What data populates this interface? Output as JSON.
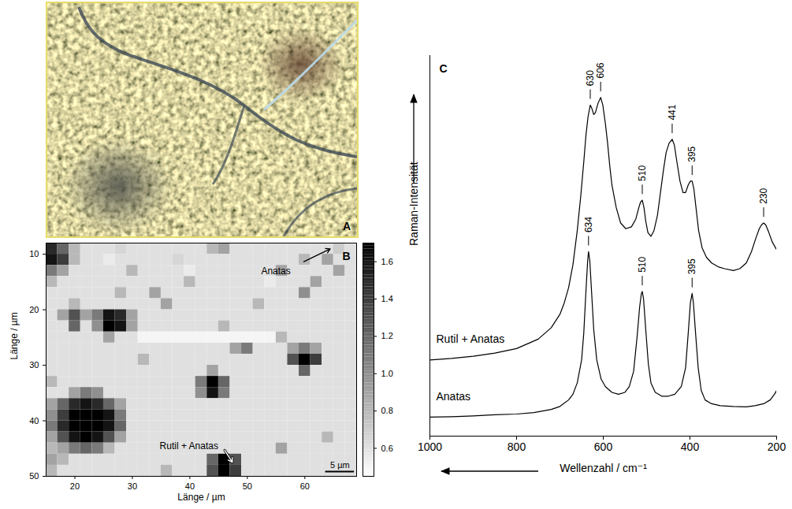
{
  "chart_data": [
    {
      "type": "image",
      "panel": "A"
    },
    {
      "type": "heatmap",
      "panel": "B",
      "x_label": "Länge / µm",
      "y_label": "Länge / µm",
      "xlim": [
        15,
        69
      ],
      "xticks": [
        20,
        30,
        40,
        50,
        60
      ],
      "ylim": [
        50,
        8
      ],
      "yticks": [
        10,
        20,
        30,
        40,
        50
      ],
      "x": [
        16,
        18,
        20,
        22,
        24,
        26,
        28,
        30,
        32,
        34,
        36,
        38,
        40,
        42,
        44,
        46,
        48,
        50,
        52,
        54,
        56,
        58,
        60,
        62,
        64,
        66,
        68
      ],
      "y": [
        9,
        11,
        13,
        15,
        17,
        19,
        21,
        23,
        25,
        27,
        29,
        31,
        33,
        35,
        37,
        39,
        41,
        43,
        45,
        47,
        49
      ],
      "values": [
        [
          1.5,
          1.2,
          0.8,
          0.6,
          0.6,
          0.6,
          0.65,
          0.6,
          0.6,
          0.6,
          0.6,
          0.6,
          0.6,
          0.6,
          0.8,
          0.9,
          0.6,
          0.6,
          0.6,
          0.6,
          0.6,
          0.6,
          0.6,
          0.6,
          0.6,
          0.7,
          0.6
        ],
        [
          1.6,
          1.4,
          0.8,
          0.6,
          0.6,
          0.55,
          0.6,
          0.6,
          0.6,
          0.6,
          0.6,
          0.65,
          0.6,
          0.6,
          0.6,
          0.6,
          0.6,
          0.6,
          0.6,
          0.6,
          0.6,
          0.6,
          0.8,
          0.6,
          0.9,
          0.6,
          0.6
        ],
        [
          1.1,
          0.9,
          0.6,
          0.6,
          0.6,
          0.6,
          0.6,
          0.8,
          0.6,
          0.6,
          0.6,
          0.6,
          0.55,
          0.6,
          0.6,
          0.6,
          0.6,
          0.6,
          0.6,
          0.6,
          0.9,
          0.6,
          0.6,
          0.6,
          0.6,
          0.9,
          0.6
        ],
        [
          0.8,
          0.6,
          0.6,
          0.6,
          0.6,
          0.6,
          0.6,
          0.6,
          0.6,
          0.6,
          0.6,
          0.6,
          0.8,
          0.6,
          0.6,
          0.6,
          0.6,
          0.6,
          0.6,
          0.55,
          0.6,
          0.6,
          0.6,
          0.9,
          0.6,
          0.6,
          0.6
        ],
        [
          0.6,
          0.6,
          0.6,
          0.6,
          0.6,
          0.6,
          0.8,
          0.6,
          0.6,
          0.9,
          0.6,
          0.6,
          0.6,
          0.6,
          0.6,
          0.6,
          0.6,
          0.6,
          0.6,
          0.6,
          0.6,
          0.6,
          1.0,
          0.6,
          0.6,
          0.6,
          0.6
        ],
        [
          0.6,
          0.6,
          0.8,
          0.6,
          0.6,
          0.6,
          0.6,
          0.6,
          0.6,
          0.6,
          0.9,
          0.6,
          0.6,
          0.6,
          0.6,
          0.6,
          0.6,
          0.6,
          0.8,
          0.6,
          0.6,
          0.6,
          0.6,
          0.6,
          0.6,
          0.6,
          0.6
        ],
        [
          0.6,
          0.9,
          1.3,
          0.9,
          1.1,
          1.6,
          1.5,
          0.9,
          0.6,
          0.6,
          0.6,
          0.6,
          0.6,
          0.6,
          0.6,
          0.6,
          0.6,
          0.6,
          0.6,
          0.6,
          0.6,
          0.6,
          0.6,
          0.6,
          0.6,
          0.6,
          0.6
        ],
        [
          0.6,
          0.6,
          1.2,
          0.6,
          1.0,
          1.7,
          1.6,
          0.9,
          0.6,
          0.6,
          0.6,
          0.6,
          0.6,
          0.6,
          0.6,
          0.8,
          0.6,
          0.6,
          0.6,
          0.6,
          0.6,
          0.6,
          0.6,
          0.6,
          0.6,
          0.6,
          0.6
        ],
        [
          0.6,
          0.6,
          0.6,
          0.6,
          0.6,
          0.9,
          0.6,
          0.6,
          0.5,
          0.5,
          0.5,
          0.5,
          0.5,
          0.5,
          0.5,
          0.5,
          0.5,
          0.5,
          0.5,
          0.5,
          0.8,
          0.6,
          0.6,
          0.6,
          0.6,
          0.6,
          0.6
        ],
        [
          0.6,
          0.6,
          0.6,
          0.6,
          0.6,
          0.6,
          0.6,
          0.6,
          0.6,
          0.6,
          0.6,
          0.6,
          0.6,
          0.6,
          0.6,
          0.6,
          0.9,
          1.1,
          0.6,
          0.6,
          0.6,
          0.9,
          1.1,
          0.9,
          0.6,
          0.6,
          0.6
        ],
        [
          0.6,
          0.6,
          0.6,
          0.6,
          0.6,
          0.6,
          0.6,
          0.6,
          0.8,
          0.6,
          0.6,
          0.6,
          0.6,
          0.6,
          0.6,
          0.6,
          0.6,
          0.6,
          0.6,
          0.6,
          0.6,
          1.3,
          1.7,
          1.4,
          0.6,
          0.6,
          0.6
        ],
        [
          0.6,
          0.6,
          0.6,
          0.6,
          0.6,
          0.6,
          0.6,
          0.6,
          0.6,
          0.6,
          0.6,
          0.6,
          0.6,
          0.6,
          0.9,
          0.6,
          0.6,
          0.6,
          0.6,
          0.6,
          0.6,
          0.6,
          1.2,
          0.6,
          0.6,
          0.6,
          0.6
        ],
        [
          0.8,
          0.6,
          0.6,
          0.6,
          0.6,
          0.6,
          0.6,
          0.6,
          0.6,
          0.6,
          0.6,
          0.6,
          0.6,
          1.1,
          1.7,
          1.2,
          0.6,
          0.6,
          0.6,
          0.6,
          0.6,
          0.6,
          0.6,
          0.6,
          0.6,
          0.6,
          0.6
        ],
        [
          0.6,
          0.6,
          0.9,
          1.1,
          1.0,
          0.6,
          0.6,
          0.6,
          0.6,
          0.6,
          0.6,
          0.6,
          0.6,
          1.0,
          1.6,
          1.1,
          0.6,
          0.6,
          0.6,
          0.6,
          0.6,
          0.6,
          0.6,
          0.6,
          0.6,
          0.6,
          0.6
        ],
        [
          0.9,
          1.2,
          1.5,
          1.6,
          1.5,
          1.2,
          0.9,
          0.6,
          0.6,
          0.6,
          0.6,
          0.6,
          0.6,
          0.6,
          0.6,
          0.6,
          0.6,
          0.6,
          0.6,
          0.6,
          0.6,
          0.6,
          0.6,
          0.6,
          0.6,
          0.6,
          0.6
        ],
        [
          1.0,
          1.4,
          1.7,
          1.7,
          1.7,
          1.6,
          1.1,
          0.6,
          0.6,
          0.6,
          0.6,
          0.6,
          0.6,
          0.6,
          0.6,
          0.6,
          0.6,
          0.6,
          0.6,
          0.6,
          0.6,
          0.6,
          0.6,
          0.6,
          0.6,
          0.6,
          0.6
        ],
        [
          1.1,
          1.5,
          1.7,
          1.7,
          1.7,
          1.6,
          1.2,
          0.6,
          0.6,
          0.6,
          0.6,
          0.6,
          0.6,
          0.6,
          0.6,
          0.6,
          0.6,
          0.6,
          0.6,
          0.6,
          0.6,
          0.6,
          0.6,
          0.6,
          0.6,
          0.6,
          0.6
        ],
        [
          0.9,
          1.3,
          1.6,
          1.7,
          1.6,
          1.3,
          0.9,
          0.6,
          0.6,
          0.6,
          0.6,
          0.6,
          0.6,
          0.6,
          0.6,
          0.6,
          0.6,
          0.6,
          0.6,
          0.6,
          0.6,
          0.6,
          0.6,
          0.6,
          0.8,
          0.6,
          0.6
        ],
        [
          0.8,
          0.9,
          1.1,
          1.2,
          1.1,
          0.8,
          0.6,
          0.6,
          0.6,
          0.6,
          0.6,
          0.6,
          0.6,
          0.6,
          0.6,
          0.6,
          0.6,
          0.6,
          0.6,
          0.6,
          0.9,
          0.6,
          0.6,
          0.6,
          0.6,
          0.6,
          0.6
        ],
        [
          0.9,
          0.8,
          0.6,
          0.6,
          0.6,
          0.6,
          0.6,
          0.6,
          0.6,
          0.6,
          0.6,
          0.6,
          0.6,
          0.6,
          1.2,
          1.7,
          1.3,
          0.6,
          0.6,
          0.6,
          0.6,
          0.6,
          0.6,
          0.6,
          0.6,
          0.6,
          0.6
        ],
        [
          0.8,
          0.6,
          0.6,
          0.6,
          0.6,
          0.6,
          0.6,
          0.6,
          0.6,
          0.6,
          0.8,
          0.6,
          0.6,
          0.6,
          1.3,
          1.7,
          1.4,
          0.6,
          0.6,
          0.6,
          0.6,
          0.6,
          0.6,
          0.6,
          0.6,
          0.6,
          0.6
        ]
      ],
      "colorbar": {
        "range": [
          0.45,
          1.7
        ],
        "ticks": [
          0.6,
          0.8,
          {
            "value": 1,
            "label": "1.0"
          },
          1.2,
          1.4,
          1.6
        ]
      },
      "annotations": [
        "Anatas",
        "Rutil + Anatas"
      ],
      "scale_bar": {
        "label": "5 µm",
        "length": 5
      }
    },
    {
      "type": "line",
      "panel": "C",
      "x_label": "Wellenzahl / cm⁻¹",
      "y_label": "Raman-Intensität",
      "xlim": [
        1000,
        200
      ],
      "xticks": [
        1000,
        800,
        600,
        400,
        200
      ],
      "ylim": [
        0,
        100
      ],
      "yticks": [],
      "tick_labels": "x",
      "series": [
        {
          "name": "Rutil + Anatas",
          "color": "#000000",
          "x": [
            1000,
            950,
            900,
            850,
            800,
            750,
            720,
            700,
            690,
            680,
            670,
            660,
            652,
            645,
            640,
            635,
            630,
            626,
            622,
            618,
            612,
            606,
            601,
            595,
            590,
            585,
            580,
            570,
            560,
            548,
            535,
            525,
            518,
            514,
            510,
            506,
            502,
            497,
            490,
            483,
            475,
            468,
            461,
            455,
            448,
            441,
            436,
            430,
            423,
            416,
            410,
            404,
            399,
            395,
            391,
            386,
            380,
            372,
            362,
            350,
            335,
            320,
            300,
            285,
            270,
            258,
            248,
            240,
            235,
            230,
            225,
            218,
            210,
            200
          ],
          "values": [
            20,
            20.4,
            21,
            21.8,
            23,
            25.5,
            28.5,
            32,
            35,
            39,
            45,
            54,
            63,
            72,
            79,
            84,
            87,
            86,
            84.5,
            85,
            87.5,
            89,
            87,
            82,
            77,
            71,
            66,
            60,
            56,
            54.5,
            55,
            57,
            60,
            61.5,
            62,
            60,
            56.5,
            53.5,
            52.5,
            54,
            58,
            64,
            70,
            74.5,
            77,
            78,
            76.5,
            72,
            67,
            64,
            64,
            66,
            67,
            67,
            65,
            60,
            54,
            49.5,
            47,
            45.5,
            44.5,
            44,
            43.5,
            44,
            45.5,
            48.5,
            52,
            54.5,
            55.5,
            56,
            55.5,
            53.5,
            51,
            49
          ],
          "peaks": [
            630,
            606,
            510,
            441,
            395,
            230
          ]
        },
        {
          "name": "Anatas",
          "color": "#000000",
          "x": [
            1000,
            950,
            900,
            850,
            800,
            760,
            720,
            700,
            680,
            670,
            660,
            650,
            645,
            640,
            636,
            634,
            631,
            627,
            622,
            615,
            605,
            595,
            580,
            565,
            550,
            540,
            530,
            522,
            516,
            512,
            510,
            507,
            502,
            496,
            490,
            480,
            465,
            450,
            435,
            420,
            410,
            404,
            399,
            395,
            392,
            387,
            381,
            374,
            365,
            350,
            330,
            300,
            270,
            250,
            230,
            215,
            205,
            200
          ],
          "values": [
            5,
            5.1,
            5.3,
            5.6,
            5.8,
            6.2,
            7,
            7.8,
            9.5,
            11,
            14,
            20,
            27,
            38,
            46,
            48.5,
            46,
            38,
            28,
            20,
            15,
            13,
            11.5,
            11,
            11.5,
            13,
            17,
            26,
            34,
            37.5,
            38,
            36,
            28,
            19,
            14,
            11.5,
            10.5,
            10.5,
            11,
            13,
            18,
            27,
            35,
            37.5,
            35,
            27,
            18,
            12,
            9.5,
            8.5,
            8,
            7.8,
            7.7,
            8,
            8.5,
            9.5,
            11,
            12
          ],
          "peaks": [
            634,
            510,
            395
          ]
        }
      ]
    }
  ]
}
